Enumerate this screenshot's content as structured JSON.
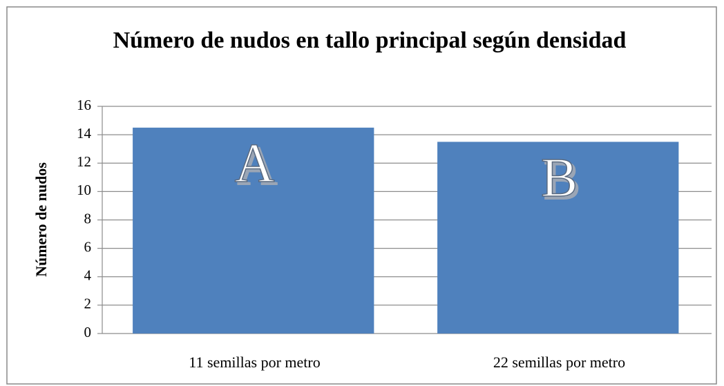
{
  "chart_data": {
    "type": "bar",
    "title": "Número de nudos en tallo principal según densidad",
    "ylabel": "Número de nudos",
    "categories": [
      "11 semillas por metro",
      "22 semillas por metro"
    ],
    "values": [
      14.5,
      13.5
    ],
    "color": "#4f81bd",
    "annotations": [
      "A",
      "B"
    ],
    "ylim": [
      0,
      16
    ],
    "yticks": [
      0,
      2,
      4,
      6,
      8,
      10,
      12,
      14,
      16
    ],
    "grid": true
  }
}
